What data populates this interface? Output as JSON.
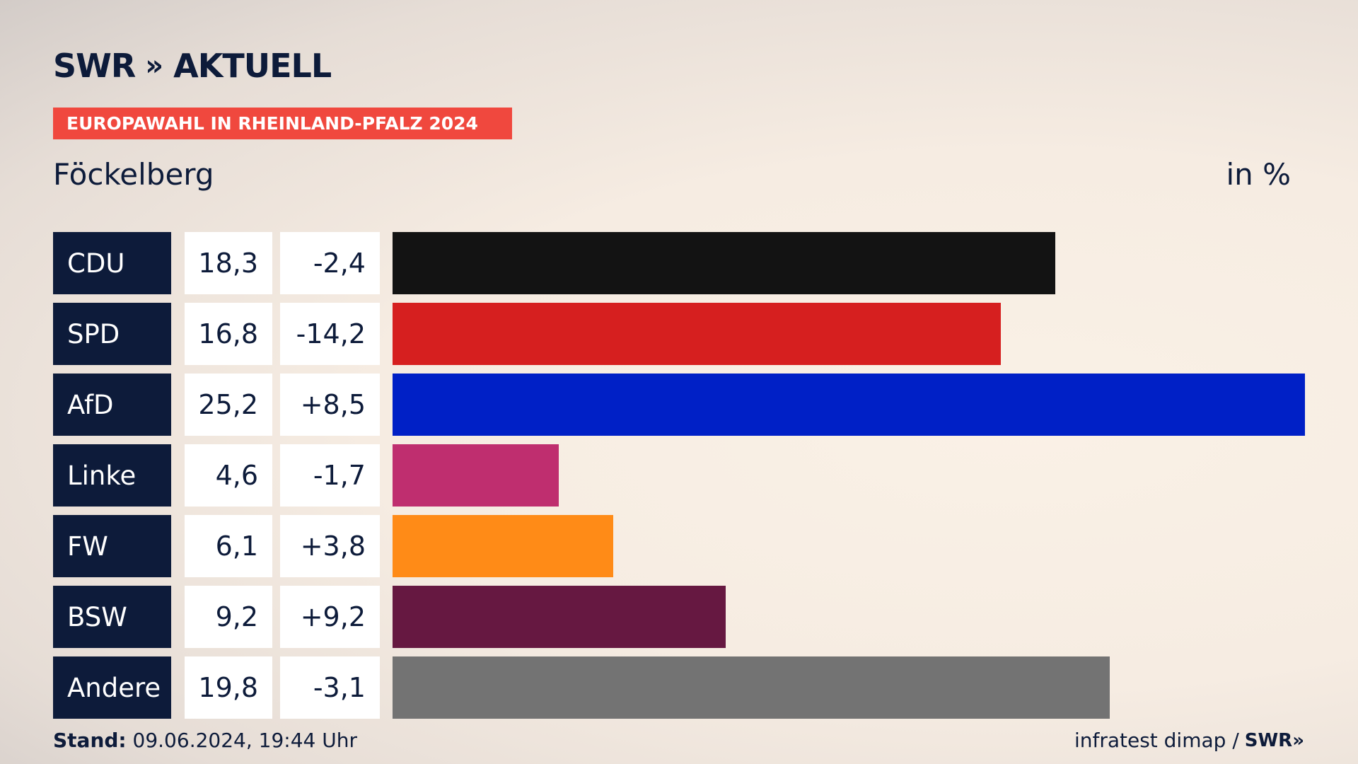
{
  "header": {
    "logo_text": "SWR",
    "logo_chevrons": "»",
    "logo_suffix": "AKTUELL",
    "tag": "EUROPAWAHL IN RHEINLAND-PFALZ 2024",
    "subtitle": "Föckelberg",
    "unit": "in %"
  },
  "chart_data": {
    "type": "bar",
    "orientation": "horizontal",
    "categories": [
      "CDU",
      "SPD",
      "AfD",
      "Linke",
      "FW",
      "BSW",
      "Andere"
    ],
    "values": [
      18.3,
      16.8,
      25.2,
      4.6,
      6.1,
      9.2,
      19.8
    ],
    "values_label": [
      "18,3",
      "16,8",
      "25,2",
      "4,6",
      "6,1",
      "9,2",
      "19,8"
    ],
    "changes": [
      -2.4,
      -14.2,
      8.5,
      -1.7,
      3.8,
      9.2,
      -3.1
    ],
    "changes_label": [
      "-2,4",
      "-14,2",
      "+8,5",
      "-1,7",
      "+3,8",
      "+9,2",
      "-3,1"
    ],
    "colors": [
      "#131313",
      "#d61f1f",
      "#0020c6",
      "#bf2e6f",
      "#ff8b17",
      "#661841",
      "#737373"
    ],
    "xlim": [
      0,
      25.2
    ],
    "grid": false
  },
  "footer": {
    "stand_label": "Stand:",
    "stand_value": "09.06.2024, 19:44 Uhr",
    "source": "infratest dimap /",
    "brand": "SWR»"
  }
}
